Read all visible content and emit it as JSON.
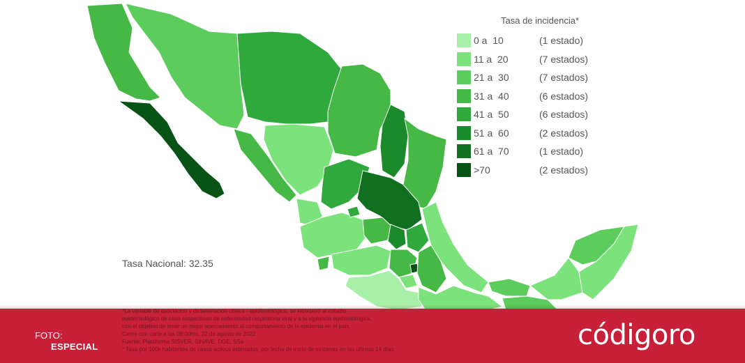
{
  "legend": {
    "title": "Tasa de incidencia*",
    "items": [
      {
        "range": "0 a  10",
        "count": "(1 estado)",
        "color": "#a8f0a8"
      },
      {
        "range": "11 a  20",
        "count": "(7 estados)",
        "color": "#7ce27c"
      },
      {
        "range": "21 a  30",
        "count": "(7 estados)",
        "color": "#5ccc5c"
      },
      {
        "range": "31 a  40",
        "count": "(6 estados)",
        "color": "#45b845"
      },
      {
        "range": "41 a  50",
        "count": "(6 estados)",
        "color": "#2fa83c"
      },
      {
        "range": "51 a  60",
        "count": "(2 estados)",
        "color": "#1b8a2a"
      },
      {
        "range": "61 a  70",
        "count": "(1 estado)",
        "color": "#10701f"
      },
      {
        "range": ">70",
        "count": "(2 estados)",
        "color": "#075215"
      }
    ]
  },
  "tasa_nacional": "Tasa Nacional: 32.35",
  "notes": [
    "*La variable de asociación y dictaminación clínica - epidemiológica, se incorporó al estudio",
    "epidemiológico de caso sospechoso de enfermedad respiratoria viral y a la vigilancia epidemiológica,",
    "con el objetivo de tener un mejor acercamiento al comportamiento de la epidemia en el país.",
    "",
    "Cierre con corte a las 09:00hrs, 22 de agosto de 2022",
    "Fuente: Plataforma SISVER, SINAVE, DGE, SSa",
    "* Tasa por 100k habitantes de casos activos estimados, por fecha de inicio de síntomas en los últimos 14 días."
  ],
  "photo_credit": {
    "label": "FOTO:",
    "value": "ESPECIAL"
  },
  "brand": {
    "logo_text": "códigoro",
    "footer_color": "#c9203a"
  }
}
